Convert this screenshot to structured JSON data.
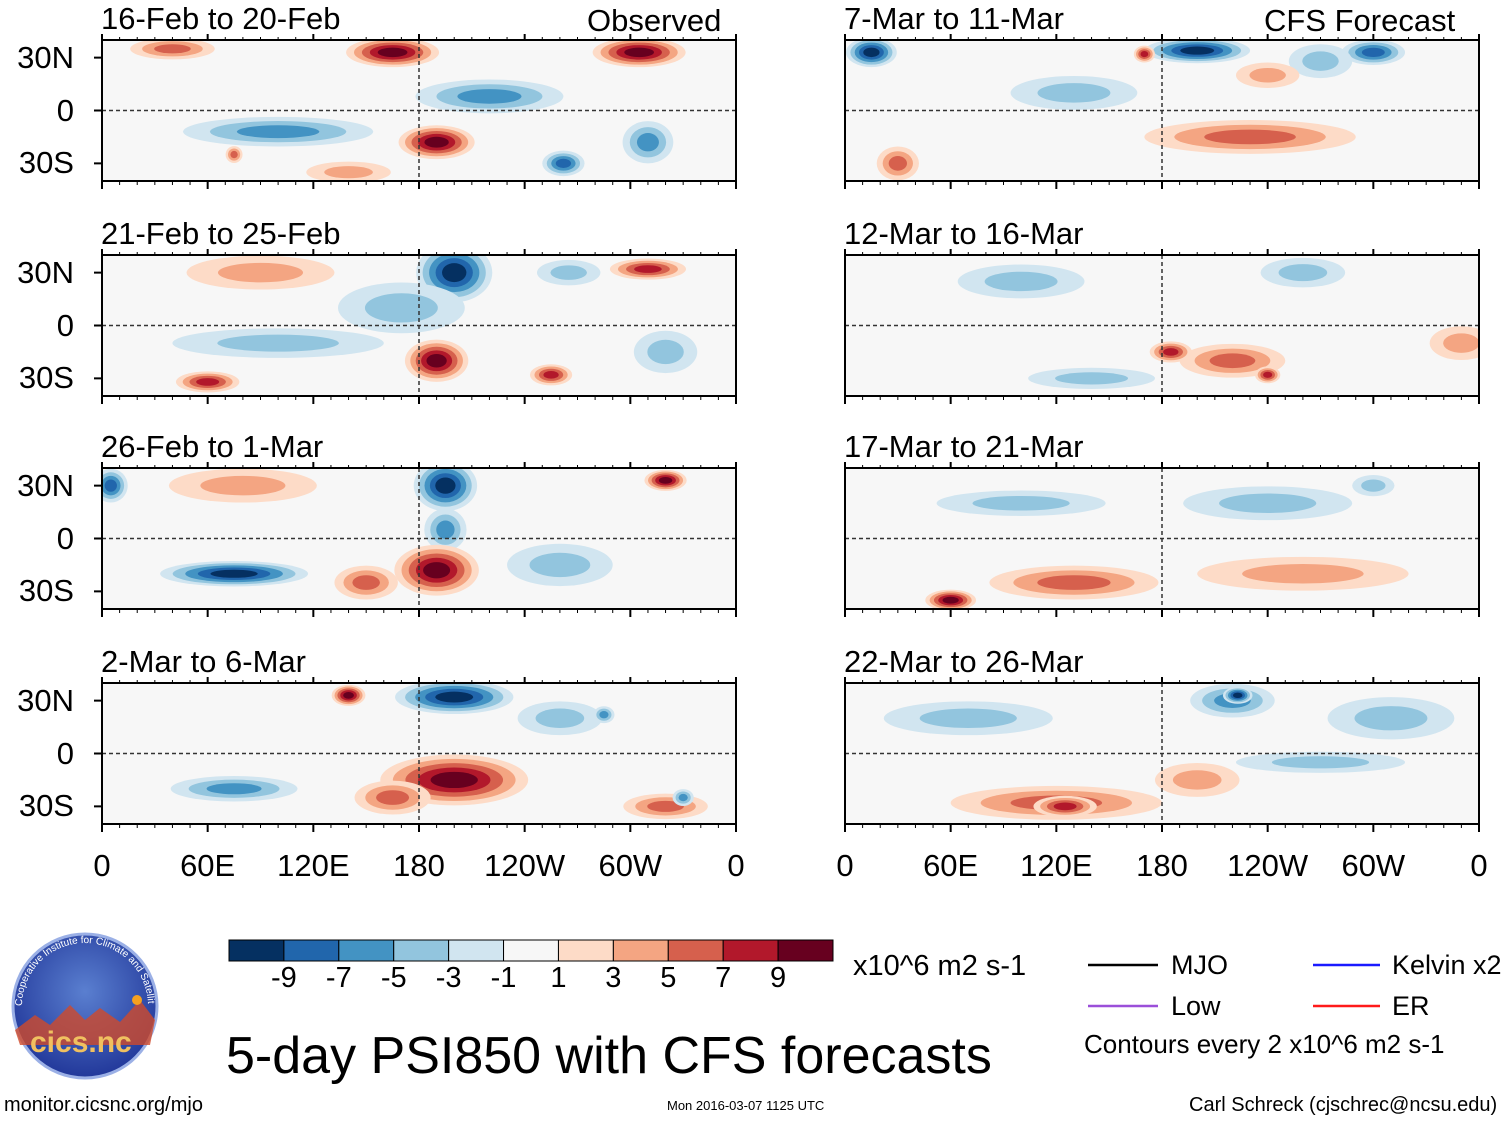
{
  "observed_label": "Observed",
  "forecast_label": "CFS Forecast",
  "lat_labels": [
    "30N",
    "0",
    "30S"
  ],
  "lon_labels": [
    "0",
    "60E",
    "120E",
    "180",
    "120W",
    "60W",
    "0"
  ],
  "panels": [
    {
      "title": "16-Feb to 20-Feb",
      "blobs": [
        [
          165,
          33,
          22,
          7,
          9
        ],
        [
          305,
          33,
          22,
          7,
          9
        ],
        [
          220,
          8,
          35,
          8,
          -5
        ],
        [
          100,
          -12,
          45,
          7,
          -5
        ],
        [
          190,
          -18,
          18,
          8,
          9
        ],
        [
          262,
          -30,
          10,
          6,
          -7
        ],
        [
          310,
          -18,
          12,
          10,
          -5
        ],
        [
          75,
          -25,
          4,
          4,
          5
        ],
        [
          40,
          35,
          20,
          5,
          5
        ],
        [
          140,
          -35,
          20,
          5,
          3
        ]
      ]
    },
    {
      "title": "21-Feb to 25-Feb",
      "blobs": [
        [
          200,
          30,
          18,
          14,
          -9
        ],
        [
          170,
          10,
          30,
          12,
          -3
        ],
        [
          90,
          30,
          35,
          8,
          3
        ],
        [
          310,
          32,
          18,
          5,
          7
        ],
        [
          190,
          -20,
          15,
          10,
          9
        ],
        [
          255,
          -28,
          10,
          5,
          7
        ],
        [
          60,
          -32,
          15,
          5,
          7
        ],
        [
          100,
          -10,
          50,
          7,
          -3
        ],
        [
          320,
          -15,
          15,
          10,
          -3
        ],
        [
          265,
          30,
          15,
          6,
          -3
        ]
      ]
    },
    {
      "title": "26-Feb to 1-Mar",
      "blobs": [
        [
          195,
          30,
          15,
          12,
          -9
        ],
        [
          195,
          5,
          10,
          10,
          -5
        ],
        [
          80,
          30,
          35,
          8,
          3
        ],
        [
          320,
          33,
          10,
          5,
          9
        ],
        [
          75,
          -20,
          35,
          6,
          -9
        ],
        [
          190,
          -18,
          20,
          12,
          9
        ],
        [
          150,
          -25,
          15,
          8,
          5
        ],
        [
          260,
          -15,
          25,
          10,
          -3
        ],
        [
          5,
          30,
          8,
          8,
          -7
        ]
      ]
    },
    {
      "title": "2-Mar to 6-Mar",
      "blobs": [
        [
          200,
          32,
          28,
          8,
          -9
        ],
        [
          140,
          33,
          8,
          5,
          9
        ],
        [
          200,
          -15,
          35,
          12,
          9
        ],
        [
          165,
          -25,
          18,
          8,
          5
        ],
        [
          75,
          -20,
          30,
          6,
          -5
        ],
        [
          320,
          -30,
          20,
          6,
          5
        ],
        [
          330,
          -25,
          5,
          4,
          -5
        ],
        [
          260,
          20,
          20,
          8,
          -3
        ],
        [
          285,
          22,
          5,
          4,
          -5
        ]
      ]
    },
    {
      "title": "7-Mar to 11-Mar",
      "blobs": [
        [
          15,
          33,
          12,
          7,
          -9
        ],
        [
          200,
          34,
          25,
          6,
          -9
        ],
        [
          300,
          33,
          15,
          6,
          -7
        ],
        [
          270,
          28,
          15,
          8,
          -3
        ],
        [
          230,
          -15,
          50,
          8,
          5
        ],
        [
          30,
          -30,
          10,
          8,
          5
        ],
        [
          130,
          10,
          30,
          8,
          -3
        ],
        [
          170,
          32,
          5,
          4,
          7
        ],
        [
          240,
          20,
          15,
          6,
          3
        ]
      ]
    },
    {
      "title": "12-Mar to 16-Mar",
      "blobs": [
        [
          220,
          -20,
          25,
          8,
          5
        ],
        [
          240,
          -28,
          6,
          4,
          7
        ],
        [
          185,
          -15,
          10,
          5,
          7
        ],
        [
          260,
          30,
          20,
          7,
          -3
        ],
        [
          100,
          25,
          30,
          8,
          -3
        ],
        [
          350,
          -10,
          15,
          8,
          3
        ],
        [
          140,
          -30,
          30,
          5,
          -3
        ]
      ]
    },
    {
      "title": "17-Mar to 21-Mar",
      "blobs": [
        [
          130,
          -25,
          40,
          8,
          5
        ],
        [
          60,
          -35,
          12,
          5,
          9
        ],
        [
          260,
          -20,
          50,
          8,
          3
        ],
        [
          240,
          20,
          40,
          8,
          -3
        ],
        [
          100,
          20,
          40,
          6,
          -3
        ],
        [
          300,
          30,
          10,
          5,
          -3
        ]
      ]
    },
    {
      "title": "22-Mar to 26-Mar",
      "blobs": [
        [
          120,
          -28,
          50,
          8,
          5
        ],
        [
          125,
          -30,
          15,
          5,
          7
        ],
        [
          220,
          30,
          20,
          8,
          -5
        ],
        [
          223,
          33,
          7,
          4,
          -9
        ],
        [
          200,
          -15,
          20,
          8,
          3
        ],
        [
          310,
          20,
          30,
          10,
          -3
        ],
        [
          270,
          -5,
          40,
          5,
          -3
        ],
        [
          70,
          20,
          40,
          8,
          -3
        ]
      ]
    }
  ],
  "colorbar": {
    "colors": [
      "#053061",
      "#2166ac",
      "#4393c3",
      "#92c5de",
      "#d1e5f0",
      "#f7f7f7",
      "#fddbc7",
      "#f4a582",
      "#d6604d",
      "#b2182b",
      "#67001f"
    ],
    "labels": [
      "-9",
      "-7",
      "-5",
      "-3",
      "-1",
      "1",
      "3",
      "5",
      "7",
      "9"
    ],
    "units": "x10^6 m2 s-1"
  },
  "legend": {
    "mjo": "MJO",
    "kelvin": "Kelvin x2",
    "low": "Low",
    "er": "ER",
    "contours": "Contours every 2 x10^6 m2 s-1",
    "colors": {
      "mjo": "#000000",
      "kelvin": "#1a1aff",
      "low": "#9b4fd9",
      "er": "#ff1a1a"
    }
  },
  "main_title": "5-day PSI850 with CFS forecasts",
  "logo_text": "cics.nc",
  "logo_arc": "Cooperative Institute for Climate and Satellites",
  "footer": {
    "url": "monitor.cicsnc.org/mjo",
    "timestamp": "Mon 2016-03-07 1125 UTC",
    "author": "Carl Schreck (cjschrec@ncsu.edu)"
  }
}
